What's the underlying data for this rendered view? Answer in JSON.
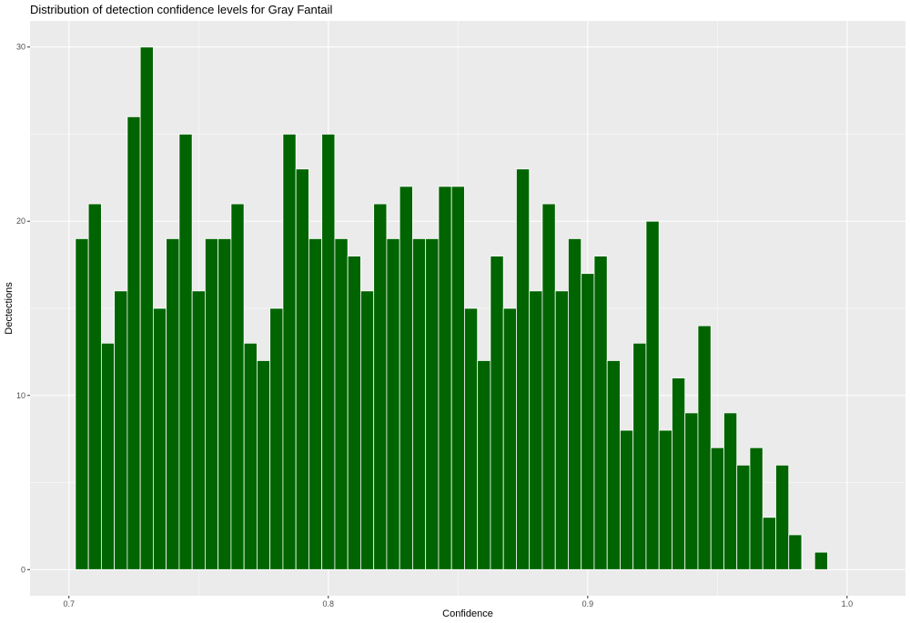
{
  "chart_data": {
    "type": "bar",
    "title": "Distribution of detection confidence levels for Gray Fantail",
    "xlabel": "Confidence",
    "ylabel": "Dectections",
    "xlim": [
      0.685,
      1.0225
    ],
    "ylim": [
      -1.5,
      31.5
    ],
    "x_ticks": [
      0.7,
      0.8,
      0.9,
      1.0
    ],
    "x_tick_labels": [
      "0.7",
      "0.8",
      "0.9",
      "1.0"
    ],
    "y_ticks": [
      0,
      10,
      20,
      30
    ],
    "y_tick_labels": [
      "0",
      "10",
      "20",
      "30"
    ],
    "bin_width": 0.005,
    "grid": true,
    "bar_color": "#006400",
    "panel_background": "#ebebeb",
    "x": [
      0.705,
      0.71,
      0.715,
      0.72,
      0.725,
      0.73,
      0.735,
      0.74,
      0.745,
      0.75,
      0.755,
      0.76,
      0.765,
      0.77,
      0.775,
      0.78,
      0.785,
      0.79,
      0.795,
      0.8,
      0.805,
      0.81,
      0.815,
      0.82,
      0.825,
      0.83,
      0.835,
      0.84,
      0.845,
      0.85,
      0.855,
      0.86,
      0.865,
      0.87,
      0.875,
      0.88,
      0.885,
      0.89,
      0.895,
      0.9,
      0.905,
      0.91,
      0.915,
      0.92,
      0.925,
      0.93,
      0.935,
      0.94,
      0.945,
      0.95,
      0.955,
      0.96,
      0.965,
      0.97,
      0.975,
      0.98,
      0.985,
      0.99
    ],
    "values": [
      19,
      21,
      13,
      16,
      26,
      30,
      15,
      19,
      25,
      16,
      19,
      19,
      21,
      13,
      12,
      15,
      25,
      23,
      19,
      25,
      19,
      18,
      16,
      21,
      19,
      22,
      19,
      19,
      22,
      22,
      15,
      12,
      18,
      15,
      23,
      16,
      21,
      16,
      19,
      17,
      18,
      12,
      8,
      13,
      20,
      8,
      11,
      9,
      14,
      7,
      9,
      6,
      7,
      3,
      6,
      2,
      0,
      1
    ]
  }
}
